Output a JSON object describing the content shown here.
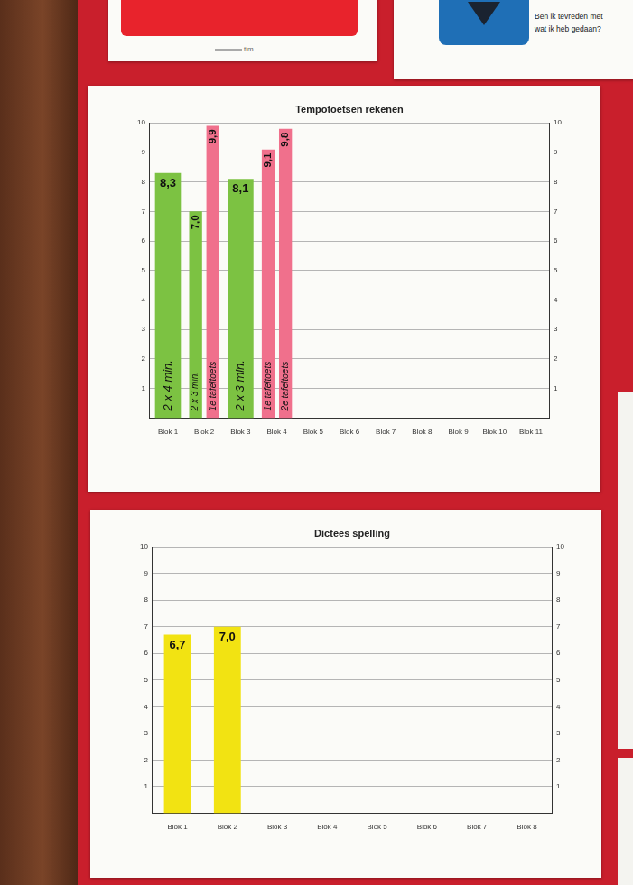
{
  "header": {
    "left_note": "tim",
    "right_note": [
      "Ben ik tevreden met",
      "wat ik heb gedaan?"
    ]
  },
  "chart_data": [
    {
      "type": "bar",
      "title": "Tempotoetsen rekenen",
      "categories": [
        "Blok 1",
        "Blok 2",
        "Blok 3",
        "Blok 4",
        "Blok 5",
        "Blok 6",
        "Blok 7",
        "Blok 8",
        "Blok 9",
        "Blok 10",
        "Blok 11"
      ],
      "series": [
        {
          "color": "#7cc242",
          "values": [
            8.3,
            7.0,
            8.1,
            null,
            null,
            null,
            null,
            null,
            null,
            null,
            null
          ],
          "value_labels": [
            "8,3",
            "7,0",
            "8,1",
            null,
            null,
            null,
            null,
            null,
            null,
            null,
            null
          ],
          "annotations": [
            "2 x 4 min.",
            "2 x 3 min.",
            "2 x 3 min.",
            null,
            null,
            null,
            null,
            null,
            null,
            null,
            null
          ]
        },
        {
          "color": "#f0708c",
          "values": [
            null,
            9.9,
            null,
            9.1,
            null,
            null,
            null,
            null,
            null,
            null,
            null
          ],
          "value_labels": [
            null,
            "9,9",
            null,
            "9,1",
            null,
            null,
            null,
            null,
            null,
            null,
            null
          ],
          "annotations": [
            null,
            "1e tafeltoets",
            null,
            "1e tafeltoets",
            null,
            null,
            null,
            null,
            null,
            null,
            null
          ]
        },
        {
          "color": "#f0708c",
          "values": [
            null,
            null,
            null,
            9.8,
            null,
            null,
            null,
            null,
            null,
            null,
            null
          ],
          "value_labels": [
            null,
            null,
            null,
            "9,8",
            null,
            null,
            null,
            null,
            null,
            null,
            null
          ],
          "annotations": [
            null,
            null,
            null,
            "2e tafeltoets",
            null,
            null,
            null,
            null,
            null,
            null,
            null
          ]
        }
      ],
      "ylim": [
        0,
        10
      ],
      "yticks": [
        1,
        2,
        3,
        4,
        5,
        6,
        7,
        8,
        9,
        10
      ],
      "y2lim": [
        0,
        10
      ],
      "y2ticks": [
        1,
        2,
        3,
        4,
        5,
        6,
        7,
        8,
        9,
        10
      ],
      "grid": true,
      "data_labels": true
    },
    {
      "type": "bar",
      "title": "Dictees spelling",
      "categories": [
        "Blok 1",
        "Blok 2",
        "Blok 3",
        "Blok 4",
        "Blok 5",
        "Blok 6",
        "Blok 7",
        "Blok 8"
      ],
      "values": [
        6.7,
        7.0,
        null,
        null,
        null,
        null,
        null,
        null
      ],
      "value_labels": [
        "6,7",
        "7,0",
        null,
        null,
        null,
        null,
        null,
        null
      ],
      "color": "#f2e312",
      "ylim": [
        0,
        10
      ],
      "yticks": [
        1,
        2,
        3,
        4,
        5,
        6,
        7,
        8,
        9,
        10
      ],
      "y2lim": [
        0,
        10
      ],
      "y2ticks": [
        1,
        2,
        3,
        4,
        5,
        6,
        7,
        8,
        9,
        10
      ],
      "grid": true,
      "data_labels": true
    }
  ]
}
